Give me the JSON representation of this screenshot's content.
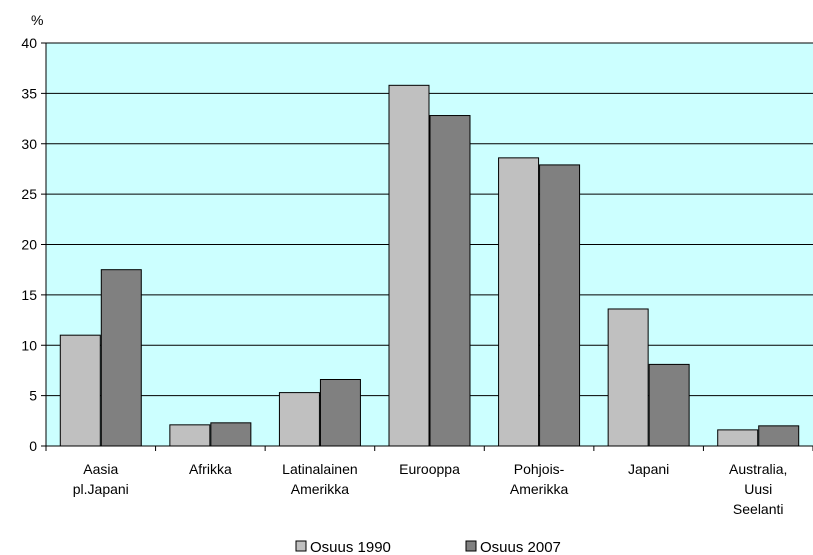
{
  "chart_data": {
    "type": "bar",
    "ylabel": "%",
    "ylim": [
      0,
      40
    ],
    "yticks": [
      0,
      5,
      10,
      15,
      20,
      25,
      30,
      35,
      40
    ],
    "grid": true,
    "legend_position": "bottom",
    "plot_background": "#CCFFFF",
    "categories": [
      [
        "Aasia",
        "pl.Japani"
      ],
      [
        "Afrikka"
      ],
      [
        "Latinalainen",
        "Amerikka"
      ],
      [
        "Eurooppa"
      ],
      [
        "Pohjois-",
        "Amerikka"
      ],
      [
        "Japani"
      ],
      [
        "Australia,",
        "Uusi",
        "Seelanti"
      ]
    ],
    "series": [
      {
        "name": "Osuus 1990",
        "color": "#C0C0C0",
        "values": [
          11.0,
          2.1,
          5.3,
          35.8,
          28.6,
          13.6,
          1.6
        ]
      },
      {
        "name": "Osuus 2007",
        "color": "#808080",
        "values": [
          17.5,
          2.3,
          6.6,
          32.8,
          27.9,
          8.1,
          2.0
        ]
      }
    ]
  }
}
